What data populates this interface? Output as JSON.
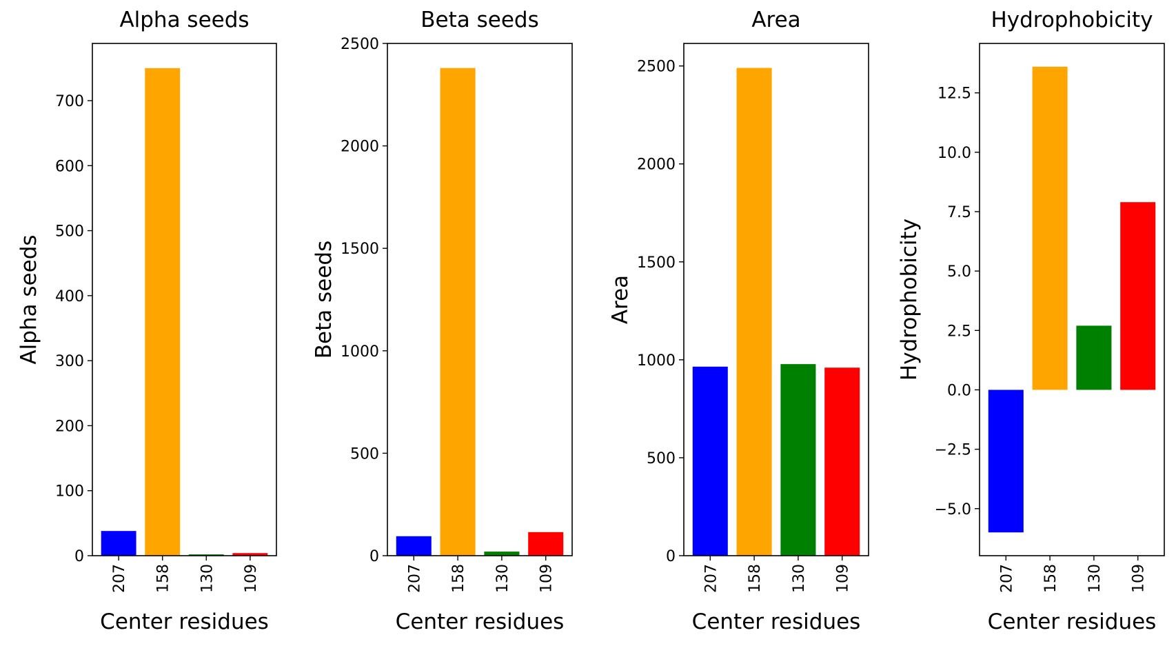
{
  "chart_data": [
    {
      "type": "bar",
      "title": "Alpha seeds",
      "xlabel": "Center residues",
      "ylabel": "Alpha seeds",
      "categories": [
        "207",
        "158",
        "130",
        "109"
      ],
      "values": [
        38,
        750,
        2,
        4
      ],
      "colors": [
        "#0000ff",
        "#ffa500",
        "#008000",
        "#ff0000"
      ],
      "ylim": [
        0,
        788
      ],
      "yticks": [
        0,
        100,
        200,
        300,
        400,
        500,
        600,
        700
      ],
      "ytick_labels": [
        "0",
        "100",
        "200",
        "300",
        "400",
        "500",
        "600",
        "700"
      ],
      "grid": false
    },
    {
      "type": "bar",
      "title": "Beta seeds",
      "xlabel": "Center residues",
      "ylabel": "Beta seeds",
      "categories": [
        "207",
        "158",
        "130",
        "109"
      ],
      "values": [
        95,
        2380,
        20,
        115
      ],
      "colors": [
        "#0000ff",
        "#ffa500",
        "#008000",
        "#ff0000"
      ],
      "ylim": [
        0,
        2500
      ],
      "yticks": [
        0,
        500,
        1000,
        1500,
        2000,
        2500
      ],
      "ytick_labels": [
        "0",
        "500",
        "1000",
        "1500",
        "2000",
        "2500"
      ],
      "grid": false
    },
    {
      "type": "bar",
      "title": "Area",
      "xlabel": "Center residues",
      "ylabel": "Area",
      "categories": [
        "207",
        "158",
        "130",
        "109"
      ],
      "values": [
        965,
        2490,
        978,
        960
      ],
      "colors": [
        "#0000ff",
        "#ffa500",
        "#008000",
        "#ff0000"
      ],
      "ylim": [
        0,
        2615
      ],
      "yticks": [
        0,
        500,
        1000,
        1500,
        2000,
        2500
      ],
      "ytick_labels": [
        "0",
        "500",
        "1000",
        "1500",
        "2000",
        "2500"
      ],
      "grid": false
    },
    {
      "type": "bar",
      "title": "Hydrophobicity",
      "xlabel": "Center residues",
      "ylabel": "Hydrophobicity",
      "categories": [
        "207",
        "158",
        "130",
        "109"
      ],
      "values": [
        -6.0,
        13.6,
        2.7,
        7.9
      ],
      "colors": [
        "#0000ff",
        "#ffa500",
        "#008000",
        "#ff0000"
      ],
      "ylim": [
        -6.98,
        14.58
      ],
      "yticks": [
        -5.0,
        -2.5,
        0.0,
        2.5,
        5.0,
        7.5,
        10.0,
        12.5
      ],
      "ytick_labels": [
        "−5.0",
        "−2.5",
        "0.0",
        "2.5",
        "5.0",
        "7.5",
        "10.0",
        "12.5"
      ],
      "grid": false
    }
  ]
}
